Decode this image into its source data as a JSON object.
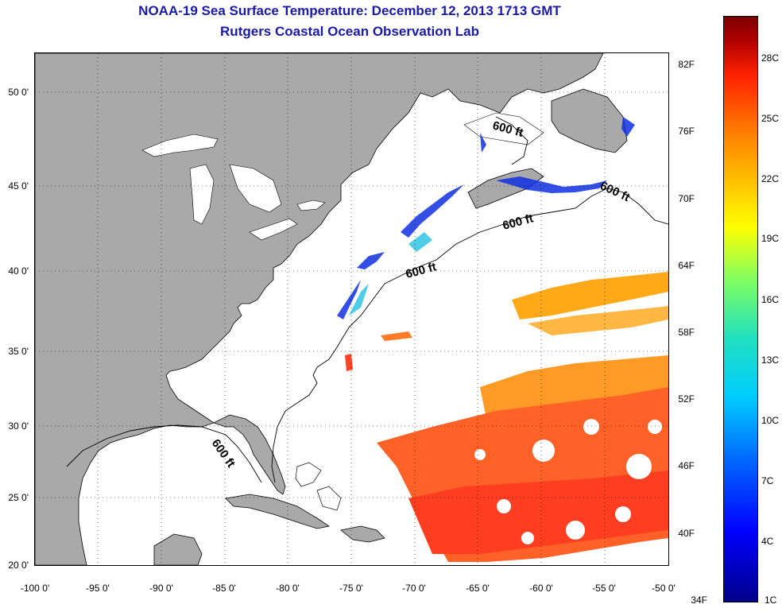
{
  "title": "NOAA-19 Sea Surface Temperature:  December 12, 2013 1713 GMT",
  "subtitle": "Rutgers Coastal Ocean Observation Lab",
  "lat_labels": [
    "50 0'",
    "45 0'",
    "40 0'",
    "35 0'",
    "30 0'",
    "25 0'",
    "20 0'"
  ],
  "lon_labels": [
    "-100 0'",
    "-95 0'",
    "-90 0'",
    "-85 0'",
    "-80 0'",
    "-75 0'",
    "-70 0'",
    "-65 0'",
    "-60 0'",
    "-55 0'",
    "-50 0'"
  ],
  "contour_label": "600 ft",
  "colorbar": {
    "fahrenheit": [
      "82F",
      "76F",
      "70F",
      "64F",
      "58F",
      "52F",
      "46F",
      "40F",
      "34F"
    ],
    "celsius": [
      "28C",
      "25C",
      "22C",
      "19C",
      "16C",
      "13C",
      "10C",
      "7C",
      "4C",
      "1C"
    ]
  },
  "colors": {
    "land": "#a9a9a9",
    "ocean": "#ffffff",
    "title": "#1a1aa6",
    "warm_sst": "#ff4010",
    "cold_sst": "#1030e0"
  }
}
